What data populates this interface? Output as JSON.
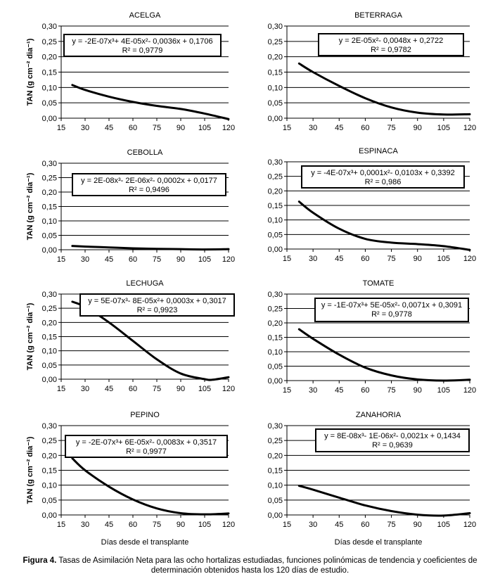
{
  "figure_caption": {
    "label": "Figura 4.",
    "text": " Tasas de Asimilación Neta para las ocho hortalizas estudiadas, funciones polinómicas de tendencia y coeficientes de determinación obtenidos hasta los 120 días de estudio."
  },
  "chart_data": [
    {
      "type": "line",
      "title": "ACELGA",
      "ylabel": "TAN (g cm⁻² dia⁻¹)",
      "xlabel": "",
      "xlim": [
        15,
        120
      ],
      "ylim": [
        0,
        0.3
      ],
      "xticks": [
        "15",
        "30",
        "45",
        "60",
        "75",
        "90",
        "105",
        "120"
      ],
      "yticks": [
        "0,00",
        "0,05",
        "0,10",
        "0,15",
        "0,20",
        "0,25",
        "0,30"
      ],
      "grid": "horizontal",
      "equation": "y = -2E-07x³+ 4E-05x²- 0,0036x + 0,1706",
      "r2": "R² = 0,9779",
      "x": [
        22,
        30,
        45,
        60,
        75,
        90,
        105,
        120
      ],
      "y": [
        0.108,
        0.092,
        0.07,
        0.053,
        0.04,
        0.03,
        0.015,
        -0.003
      ]
    },
    {
      "type": "line",
      "title": "BETERRAGA",
      "ylabel": "",
      "xlabel": "",
      "xlim": [
        15,
        120
      ],
      "ylim": [
        0,
        0.3
      ],
      "xticks": [
        "15",
        "30",
        "45",
        "60",
        "75",
        "90",
        "105",
        "120"
      ],
      "yticks": [
        "0,00",
        "0,05",
        "0,10",
        "0,15",
        "0,20",
        "0,25",
        "0,30"
      ],
      "grid": "horizontal",
      "equation": "y = 2E-05x²- 0,0048x + 0,2722",
      "r2": "R² = 0,9782",
      "x": [
        22,
        30,
        45,
        60,
        75,
        90,
        105,
        120
      ],
      "y": [
        0.178,
        0.15,
        0.105,
        0.065,
        0.035,
        0.018,
        0.012,
        0.013
      ]
    },
    {
      "type": "line",
      "title": "CEBOLLA",
      "ylabel": "TAN (g cm⁻² dia⁻¹)",
      "xlabel": "",
      "xlim": [
        15,
        120
      ],
      "ylim": [
        0,
        0.3
      ],
      "xticks": [
        "15",
        "30",
        "45",
        "60",
        "75",
        "90",
        "105",
        "120"
      ],
      "yticks": [
        "0,00",
        "0,05",
        "0,10",
        "0,15",
        "0,20",
        "0,25",
        "0,30"
      ],
      "grid": "horizontal",
      "equation": "y = 2E-08x³- 2E-06x²- 0,0002x + 0,0177",
      "r2": "R² = 0,9496",
      "x": [
        22,
        30,
        45,
        60,
        75,
        90,
        105,
        120
      ],
      "y": [
        0.013,
        0.011,
        0.008,
        0.005,
        0.003,
        0.002,
        0.001,
        0.002
      ]
    },
    {
      "type": "line",
      "title": "ESPINACA",
      "ylabel": "",
      "xlabel": "",
      "xlim": [
        15,
        120
      ],
      "ylim": [
        0,
        0.3
      ],
      "xticks": [
        "15",
        "30",
        "45",
        "60",
        "75",
        "90",
        "105",
        "120"
      ],
      "yticks": [
        "0,00",
        "0,05",
        "0,10",
        "0,15",
        "0,20",
        "0,25",
        "0,30"
      ],
      "grid": "horizontal",
      "equation": "y = -4E-07x³+ 0,0001x²- 0,0103x + 0,3392",
      "r2": "R² = 0,986",
      "x": [
        22,
        30,
        45,
        60,
        75,
        90,
        105,
        120
      ],
      "y": [
        0.163,
        0.125,
        0.07,
        0.035,
        0.022,
        0.017,
        0.01,
        -0.003
      ]
    },
    {
      "type": "line",
      "title": "LECHUGA",
      "ylabel": "TAN (g cm⁻² dia⁻¹)",
      "xlabel": "",
      "xlim": [
        15,
        120
      ],
      "ylim": [
        0,
        0.3
      ],
      "xticks": [
        "15",
        "30",
        "45",
        "60",
        "75",
        "90",
        "105",
        "120"
      ],
      "yticks": [
        "0,00",
        "0,05",
        "0,10",
        "0,15",
        "0,20",
        "0,25",
        "0,30"
      ],
      "grid": "horizontal",
      "equation": "y = 5E-07x³- 8E-05x²+ 0,0003x + 0,3017",
      "r2": "R² = 0,9923",
      "x": [
        22,
        30,
        45,
        60,
        75,
        90,
        105,
        110,
        120
      ],
      "y": [
        0.273,
        0.255,
        0.2,
        0.135,
        0.07,
        0.02,
        0.0,
        -0.002,
        0.007
      ]
    },
    {
      "type": "line",
      "title": "TOMATE",
      "ylabel": "",
      "xlabel": "",
      "xlim": [
        15,
        120
      ],
      "ylim": [
        0,
        0.3
      ],
      "xticks": [
        "15",
        "30",
        "45",
        "60",
        "75",
        "90",
        "105",
        "120"
      ],
      "yticks": [
        "0,00",
        "0,05",
        "0,10",
        "0,15",
        "0,20",
        "0,25",
        "0,30"
      ],
      "grid": "horizontal",
      "equation": "y = -1E-07x³+ 5E-05x²- 0,0071x + 0,3091",
      "r2": "R² = 0,9778",
      "x": [
        22,
        30,
        45,
        60,
        75,
        90,
        105,
        120
      ],
      "y": [
        0.178,
        0.145,
        0.09,
        0.045,
        0.018,
        0.004,
        0.0,
        0.003
      ]
    },
    {
      "type": "line",
      "title": "PEPINO",
      "ylabel": "TAN (g cm⁻² dia⁻¹)",
      "xlabel": "Días desde el transplante",
      "xlim": [
        15,
        120
      ],
      "ylim": [
        0,
        0.3
      ],
      "xticks": [
        "15",
        "30",
        "45",
        "60",
        "75",
        "90",
        "105",
        "120"
      ],
      "yticks": [
        "0,00",
        "0,05",
        "0,10",
        "0,15",
        "0,20",
        "0,25",
        "0,30"
      ],
      "grid": "horizontal",
      "equation": "y = -2E-07x³+ 6E-05x²- 0,0083x + 0,3517",
      "r2": "R² = 0,9977",
      "x": [
        22,
        30,
        45,
        60,
        75,
        90,
        105,
        120
      ],
      "y": [
        0.19,
        0.15,
        0.095,
        0.052,
        0.022,
        0.006,
        0.002,
        0.005
      ]
    },
    {
      "type": "line",
      "title": "ZANAHORIA",
      "ylabel": "",
      "xlabel": "Días desde el transplante",
      "xlim": [
        15,
        120
      ],
      "ylim": [
        0,
        0.3
      ],
      "xticks": [
        "15",
        "30",
        "45",
        "60",
        "75",
        "90",
        "105",
        "120"
      ],
      "yticks": [
        "0,00",
        "0,05",
        "0,10",
        "0,15",
        "0,20",
        "0,25",
        "0,30"
      ],
      "grid": "horizontal",
      "equation": "y = 8E-08x³- 1E-06x²- 0,0021x + 0,1434",
      "r2": "R² = 0,9639",
      "x": [
        22,
        30,
        45,
        60,
        75,
        90,
        105,
        120
      ],
      "y": [
        0.098,
        0.085,
        0.058,
        0.032,
        0.013,
        0.001,
        -0.002,
        0.006
      ]
    }
  ]
}
